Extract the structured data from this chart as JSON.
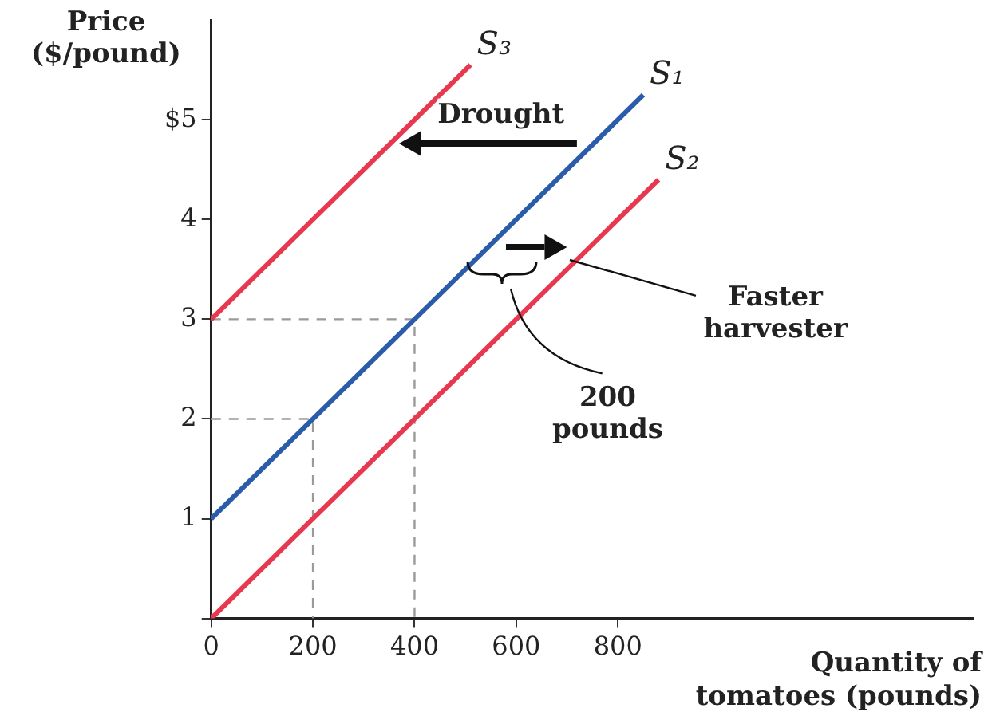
{
  "chart_data": {
    "type": "line",
    "xlabel": "Quantity of tomatoes (pounds)",
    "ylabel": "Price ($/pound)",
    "xlim": [
      0,
      1500
    ],
    "ylim": [
      0,
      6
    ],
    "xticks": [
      {
        "value": 0,
        "label": "0"
      },
      200,
      400,
      600,
      800
    ],
    "yticks": [
      {
        "value": 0,
        "label": null
      },
      1,
      2,
      3,
      4,
      {
        "value": 5,
        "label": "$5"
      }
    ],
    "grid": false,
    "legend": false,
    "marker": "none",
    "series": [
      {
        "name": "S₃",
        "color": "#e8384f",
        "x": [
          0,
          510
        ],
        "values": [
          3,
          5.55
        ]
      },
      {
        "name": "S₁",
        "color": "#2a5caa",
        "x": [
          0,
          850
        ],
        "values": [
          1,
          5.25
        ]
      },
      {
        "name": "S₂",
        "color": "#e8384f",
        "x": [
          0,
          880
        ],
        "values": [
          0,
          4.4
        ]
      },
      {
        "color": "#9a9a9a",
        "line_style": "dashed",
        "x": [
          0,
          400,
          400
        ],
        "values": [
          3,
          3,
          0
        ]
      },
      {
        "color": "#9a9a9a",
        "line_style": "dashed",
        "x": [
          0,
          200,
          200
        ],
        "values": [
          2,
          2,
          0
        ]
      }
    ],
    "annotations": [
      "Drought",
      {
        "text": "Faster harvester",
        "x": 705,
        "y": 3.6
      },
      "200 pounds"
    ]
  }
}
